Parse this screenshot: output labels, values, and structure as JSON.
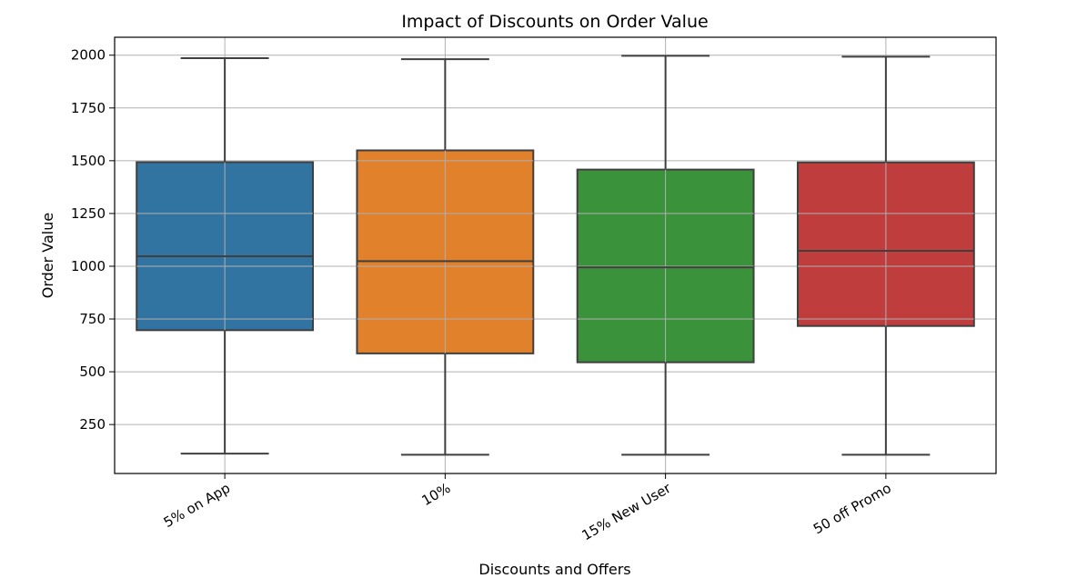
{
  "chart_data": {
    "type": "box",
    "title": "Impact of Discounts on Order Value",
    "xlabel": "Discounts and Offers",
    "ylabel": "Order Value",
    "ylim": [
      18,
      2085
    ],
    "yticks": [
      250,
      500,
      750,
      1000,
      1250,
      1500,
      1750,
      2000
    ],
    "grid": true,
    "categories": [
      "5% on App",
      "10%",
      "15% New User",
      "50 off Promo"
    ],
    "boxes": [
      {
        "category": "5% on App",
        "min": 112,
        "q1": 697,
        "median": 1047,
        "q3": 1493,
        "max": 1986,
        "color": "#3274a1"
      },
      {
        "category": "10%",
        "min": 107,
        "q1": 587,
        "median": 1024,
        "q3": 1549,
        "max": 1981,
        "color": "#e1812c"
      },
      {
        "category": "15% New User",
        "min": 107,
        "q1": 545,
        "median": 995,
        "q3": 1458,
        "max": 1997,
        "color": "#3a923a"
      },
      {
        "category": "50 off Promo",
        "min": 107,
        "q1": 717,
        "median": 1073,
        "q3": 1492,
        "max": 1993,
        "color": "#c03d3e"
      }
    ]
  }
}
